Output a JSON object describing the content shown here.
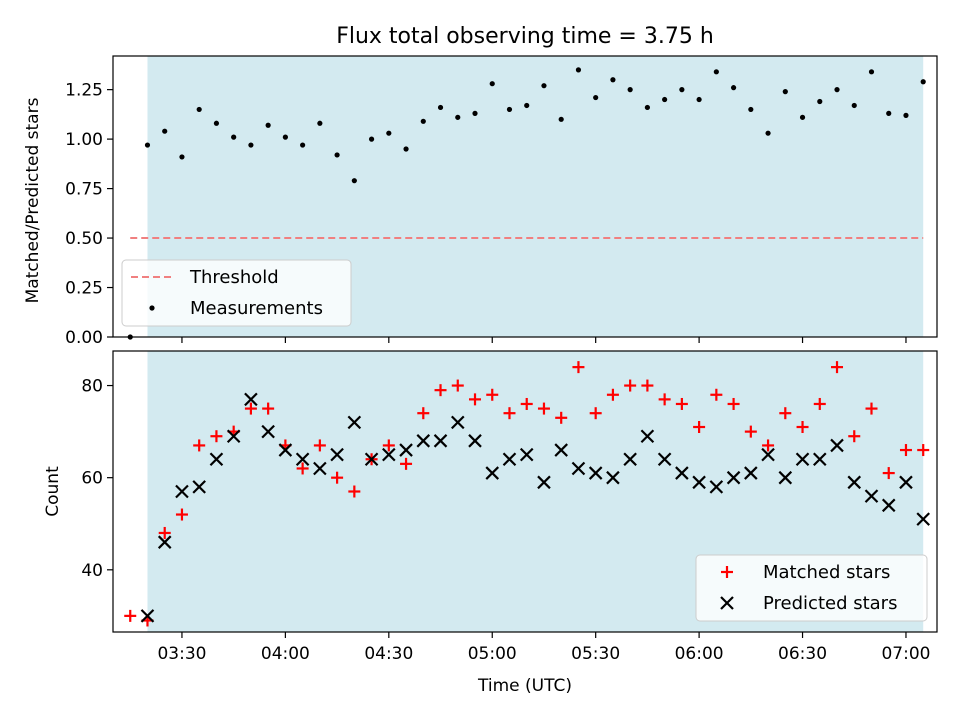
{
  "figure": {
    "title": "Flux total observing time = 3.75 h"
  },
  "chart_data": [
    {
      "type": "line",
      "panel": "top",
      "ylabel": "Matched/Predicted stars",
      "xlabel": "",
      "ylim": [
        0,
        1.42
      ],
      "yticks": [
        "0.00",
        "0.25",
        "0.50",
        "0.75",
        "1.00",
        "1.25"
      ],
      "ytick_values": [
        0,
        0.25,
        0.5,
        0.75,
        1.0,
        1.25
      ],
      "xlim_minutes": [
        190,
        429
      ],
      "shaded_span_minutes": [
        200,
        425
      ],
      "shade_color": "#d3eaf0",
      "threshold": {
        "name": "Threshold",
        "value": 0.5,
        "x_range_minutes": [
          195,
          425
        ],
        "color": "#f08080"
      },
      "legend": {
        "position": "lower-left",
        "entries": [
          "Threshold",
          "Measurements"
        ]
      },
      "series": [
        {
          "name": "Measurements",
          "marker": "dot",
          "color": "#000000",
          "x_minutes": [
            195,
            200,
            205,
            210,
            215,
            220,
            225,
            230,
            235,
            240,
            245,
            250,
            255,
            260,
            265,
            270,
            275,
            280,
            285,
            290,
            295,
            300,
            305,
            310,
            315,
            320,
            325,
            330,
            335,
            340,
            345,
            350,
            355,
            360,
            365,
            370,
            375,
            380,
            385,
            390,
            395,
            400,
            405,
            410,
            415,
            420,
            425
          ],
          "values": [
            0.0,
            0.97,
            1.04,
            0.91,
            1.15,
            1.08,
            1.01,
            0.97,
            1.07,
            1.01,
            0.97,
            1.08,
            0.92,
            0.79,
            1.0,
            1.03,
            0.95,
            1.09,
            1.16,
            1.11,
            1.13,
            1.28,
            1.15,
            1.17,
            1.27,
            1.1,
            1.35,
            1.21,
            1.3,
            1.25,
            1.16,
            1.2,
            1.25,
            1.2,
            1.34,
            1.26,
            1.15,
            1.03,
            1.24,
            1.11,
            1.19,
            1.25,
            1.17,
            1.34,
            1.13,
            1.12,
            1.29
          ]
        }
      ]
    },
    {
      "type": "scatter",
      "panel": "bottom",
      "ylabel": "Count",
      "xlabel": "Time (UTC)",
      "ylim": [
        26.5,
        87.5
      ],
      "yticks": [
        "40",
        "60",
        "80"
      ],
      "ytick_values": [
        40,
        60,
        80
      ],
      "xlim_minutes": [
        190,
        429
      ],
      "xticks": [
        "03:30",
        "04:00",
        "04:30",
        "05:00",
        "05:30",
        "06:00",
        "06:30",
        "07:00"
      ],
      "xtick_minutes": [
        210,
        240,
        270,
        300,
        330,
        360,
        390,
        420
      ],
      "shaded_span_minutes": [
        200,
        425
      ],
      "shade_color": "#d3eaf0",
      "legend": {
        "position": "lower-right",
        "entries": [
          "Matched stars",
          "Predicted stars"
        ]
      },
      "series": [
        {
          "name": "Matched stars",
          "marker": "plus",
          "color": "#ff0000",
          "x_minutes": [
            195,
            200,
            205,
            210,
            215,
            220,
            225,
            230,
            235,
            240,
            245,
            250,
            255,
            260,
            265,
            270,
            275,
            280,
            285,
            290,
            295,
            300,
            305,
            310,
            315,
            320,
            325,
            330,
            335,
            340,
            345,
            350,
            355,
            360,
            365,
            370,
            375,
            380,
            385,
            390,
            395,
            400,
            405,
            410,
            415,
            420,
            425
          ],
          "values": [
            30,
            29,
            48,
            52,
            67,
            69,
            70,
            75,
            75,
            67,
            62,
            67,
            60,
            57,
            64,
            67,
            63,
            74,
            79,
            80,
            77,
            78,
            74,
            76,
            75,
            73,
            84,
            74,
            78,
            80,
            80,
            77,
            76,
            71,
            78,
            76,
            70,
            67,
            74,
            71,
            76,
            84,
            69,
            75,
            61,
            66,
            66
          ]
        },
        {
          "name": "Predicted stars",
          "marker": "x",
          "color": "#000000",
          "x_minutes": [
            200,
            205,
            210,
            215,
            220,
            225,
            230,
            235,
            240,
            245,
            250,
            255,
            260,
            265,
            270,
            275,
            280,
            285,
            290,
            295,
            300,
            305,
            310,
            315,
            320,
            325,
            330,
            335,
            340,
            345,
            350,
            355,
            360,
            365,
            370,
            375,
            380,
            385,
            390,
            395,
            400,
            405,
            410,
            415,
            420,
            425
          ],
          "values": [
            30,
            46,
            57,
            58,
            64,
            69,
            77,
            70,
            66,
            64,
            62,
            65,
            72,
            64,
            65,
            66,
            68,
            68,
            72,
            68,
            61,
            64,
            65,
            59,
            66,
            62,
            61,
            60,
            64,
            69,
            64,
            61,
            59,
            58,
            60,
            61,
            65,
            60,
            64,
            64,
            67,
            59,
            56,
            54,
            59,
            51
          ]
        }
      ]
    }
  ]
}
